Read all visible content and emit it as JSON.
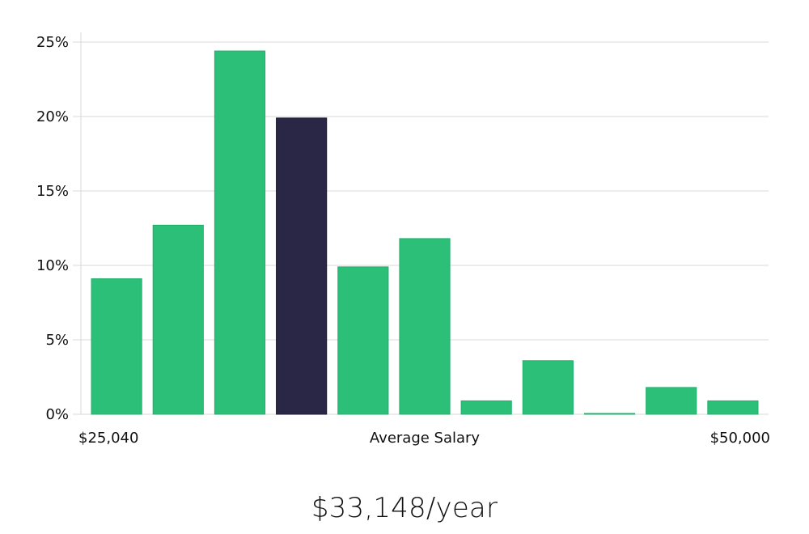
{
  "summary": {
    "salary_text": "$33,148/year"
  },
  "chart_data": {
    "type": "bar",
    "categories": [
      "",
      "",
      "",
      "",
      "",
      "",
      "",
      "",
      "",
      "",
      ""
    ],
    "values": [
      9.1,
      12.7,
      24.4,
      19.9,
      9.9,
      11.8,
      0.9,
      3.6,
      0.05,
      1.8,
      0.9
    ],
    "highlight_index": 3,
    "colors": {
      "bar": "#2bbf77",
      "highlight": "#2a2646",
      "grid": "#d9d9d9"
    },
    "title": "",
    "xlabel": "Average Salary",
    "ylabel": "",
    "x_min_label": "$25,040",
    "x_max_label": "$50,000",
    "ylim": [
      0,
      25
    ],
    "yticks": [
      0,
      5,
      10,
      15,
      20,
      25
    ],
    "ytick_labels": [
      "0%",
      "5%",
      "10%",
      "15%",
      "20%",
      "25%"
    ],
    "grid": true
  }
}
